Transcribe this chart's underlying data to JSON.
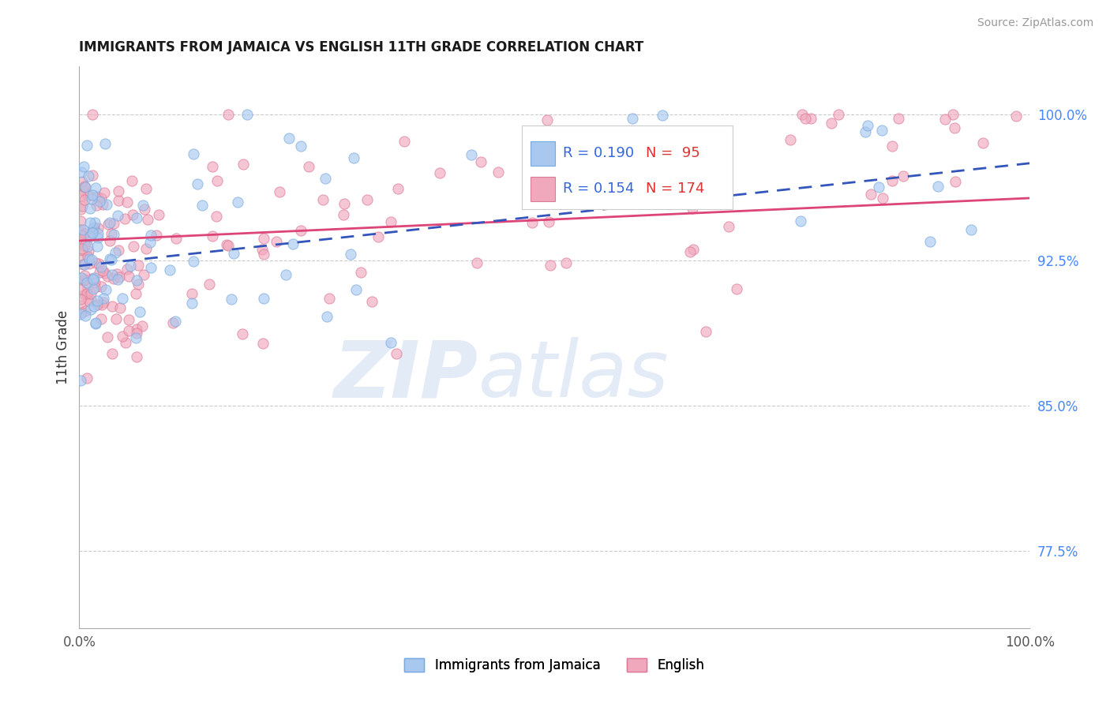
{
  "title": "IMMIGRANTS FROM JAMAICA VS ENGLISH 11TH GRADE CORRELATION CHART",
  "source": "Source: ZipAtlas.com",
  "ylabel": "11th Grade",
  "xlim": [
    0.0,
    1.0
  ],
  "ylim": [
    0.735,
    1.025
  ],
  "yticks": [
    0.775,
    0.85,
    0.925,
    1.0
  ],
  "ytick_labels": [
    "77.5%",
    "85.0%",
    "92.5%",
    "100.0%"
  ],
  "xtick_labels": [
    "0.0%",
    "100.0%"
  ],
  "blue_R": 0.19,
  "blue_N": 95,
  "pink_R": 0.154,
  "pink_N": 174,
  "blue_color": "#a8c8f0",
  "pink_color": "#f0a8bc",
  "blue_edge_color": "#7aaadd",
  "pink_edge_color": "#dd7a99",
  "blue_line_color": "#3355bb",
  "pink_line_color": "#dd4477",
  "watermark_zip": "ZIP",
  "watermark_atlas": "atlas",
  "background_color": "#ffffff",
  "grid_color": "#cccccc",
  "ytick_color": "#4488ff",
  "legend_title_color": "#333333",
  "legend_R_color": "#3366dd",
  "legend_N_color": "#dd3333"
}
